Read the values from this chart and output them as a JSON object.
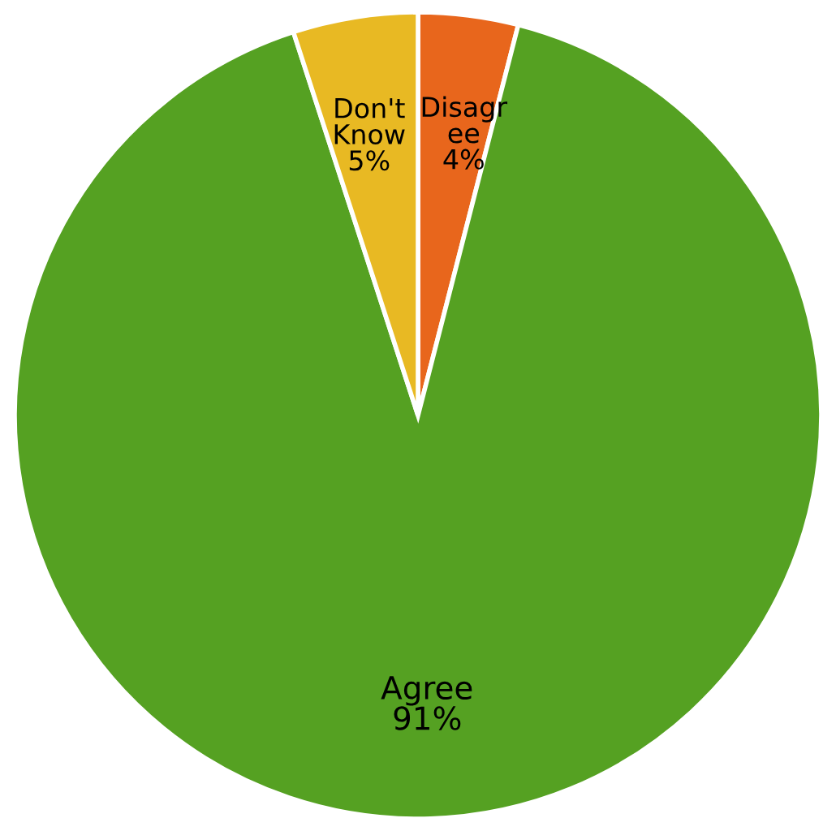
{
  "chart_data": {
    "type": "pie",
    "categories": [
      "Disagree",
      "Agree",
      "Don't Know"
    ],
    "values": [
      4,
      91,
      5
    ],
    "colors": [
      "#e8661c",
      "#55a122",
      "#e8b923"
    ],
    "value_labels": [
      "4%",
      "91%",
      "5%"
    ]
  }
}
